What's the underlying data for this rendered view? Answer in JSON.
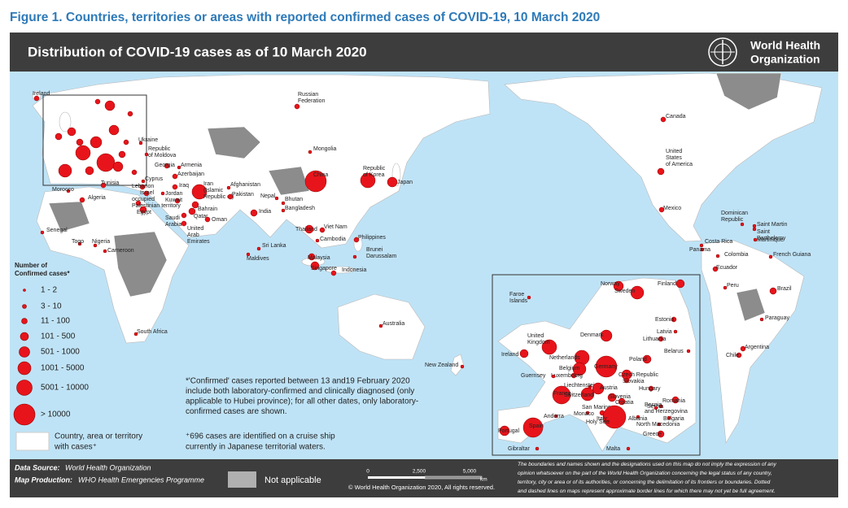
{
  "figure_title": "Figure 1. Countries, territories or areas with reported confirmed cases of COVID-19, 10 March 2020",
  "map_title": "Distribution of COVID-19 cases as of 10 March 2020",
  "organization": [
    "World Health",
    "Organization"
  ],
  "legend": {
    "title": [
      "Number of",
      "Confirmed cases*"
    ],
    "items": [
      "1 - 2",
      "3 - 10",
      "11 - 100",
      "101 - 500",
      "501 - 1000",
      "1001 - 5000",
      "5001 - 10000",
      "> 10000"
    ],
    "area": [
      "Country, area or territory",
      "with cases⁺"
    ]
  },
  "notes": {
    "confirmed": [
      "*'Confirmed' cases reported between 13 and19 February 2020",
      "include both laboratory-confirmed and clinically diagnosed (only",
      "applicable to Hubei province); for all other dates, only laboratory-",
      "confirmed cases are shown."
    ],
    "cruise": [
      "⁺696 cases are identified on a cruise ship",
      "currently in Japanese territorial waters."
    ]
  },
  "countries": [
    [
      "Ireland"
    ],
    [
      "Russian",
      "Federation"
    ],
    [
      "Canada"
    ],
    [
      "United",
      "States",
      "of America"
    ],
    [
      "Mongolia"
    ],
    [
      "China"
    ],
    [
      "Republic",
      "of Korea"
    ],
    [
      "Japan"
    ],
    [
      "Ukraine"
    ],
    [
      "Republic",
      "of Moldova"
    ],
    [
      "Georgia"
    ],
    [
      "Armenia"
    ],
    [
      "Azerbaijan"
    ],
    [
      "Cyprus"
    ],
    [
      "Lebanon"
    ],
    [
      "Israel"
    ],
    [
      "occupied",
      "Palestinian territory"
    ],
    [
      "Jordan"
    ],
    [
      "Iraq"
    ],
    [
      "Kuwait"
    ],
    [
      "Iran",
      "(Islamic",
      "Republic of)"
    ],
    [
      "Afghanistan"
    ],
    [
      "Pakistan"
    ],
    [
      "Nepal"
    ],
    [
      "Bhutan"
    ],
    [
      "Bangladesh"
    ],
    [
      "India"
    ],
    [
      "Egypt"
    ],
    [
      "Saudi",
      "Arabia"
    ],
    [
      "Bahrain"
    ],
    [
      "Qatar"
    ],
    [
      "United",
      "Arab",
      "Emirates"
    ],
    [
      "Oman"
    ],
    [
      "Tunisia"
    ],
    [
      "Morocco"
    ],
    [
      "Algeria"
    ],
    [
      "Senegal"
    ],
    [
      "Togo"
    ],
    [
      "Nigeria"
    ],
    [
      "Cameroon"
    ],
    [
      "South Africa"
    ],
    [
      "Sri Lanka"
    ],
    [
      "Maldives"
    ],
    [
      "Thailand"
    ],
    [
      "Viet Nam"
    ],
    [
      "Cambodia"
    ],
    [
      "Philippines"
    ],
    [
      "Brunei",
      "Darussalam"
    ],
    [
      "Malaysia"
    ],
    [
      "Singapore"
    ],
    [
      "Indonesia"
    ],
    [
      "Australia"
    ],
    [
      "New Zealand"
    ],
    [
      "Mexico"
    ],
    [
      "Dominican",
      "Republic"
    ],
    [
      "Saint Martin"
    ],
    [
      "Saint",
      "Barthelemy"
    ],
    [
      "Martinique"
    ],
    [
      "Costa Rica"
    ],
    [
      "Panama"
    ],
    [
      "Colombia"
    ],
    [
      "French Guiana"
    ],
    [
      "Ecuador"
    ],
    [
      "Peru"
    ],
    [
      "Brazil"
    ],
    [
      "Paraguay"
    ],
    [
      "Chile"
    ],
    [
      "Argentina"
    ]
  ],
  "inset_countries": [
    [
      "Faroe",
      "Islands"
    ],
    [
      "Norway"
    ],
    [
      "Sweden"
    ],
    [
      "Finland"
    ],
    [
      "Estonia"
    ],
    [
      "Latvia"
    ],
    [
      "Lithuania"
    ],
    [
      "Belarus"
    ],
    [
      "United",
      "Kingdom"
    ],
    [
      "Ireland"
    ],
    [
      "Denmark"
    ],
    [
      "Netherlands"
    ],
    [
      "Poland"
    ],
    [
      "Belgium"
    ],
    [
      "Germany"
    ],
    [
      "Luxembourg"
    ],
    [
      "Guernsey"
    ],
    [
      "Czech Republic"
    ],
    [
      "Slovakia"
    ],
    [
      "Liechtenstein"
    ],
    [
      "Austria"
    ],
    [
      "Hungary"
    ],
    [
      "France"
    ],
    [
      "Switzerland"
    ],
    [
      "Slovenia"
    ],
    [
      "Croatia"
    ],
    [
      "Romania"
    ],
    [
      "Serbia"
    ],
    [
      "Bosnia",
      "and Herzegovina"
    ],
    [
      "Bulgaria"
    ],
    [
      "San Marino"
    ],
    [
      "Monaco"
    ],
    [
      "Italy"
    ],
    [
      "Holy See"
    ],
    [
      "Albania"
    ],
    [
      "North Macedonia"
    ],
    [
      "Greece"
    ],
    [
      "Andorra"
    ],
    [
      "Spain"
    ],
    [
      "Portugal"
    ],
    [
      "Gibraltar"
    ],
    [
      "Malta"
    ]
  ],
  "footer": {
    "data_source": [
      "Data Source:",
      "World Health Organization"
    ],
    "map_production": [
      "Map Production:",
      "WHO Health Emergencies Programme"
    ],
    "not_applicable": "Not applicable",
    "scale": [
      "0",
      "2,500",
      "5,000",
      "km"
    ],
    "copyright": "© World Health Organization  2020,  All rights reserved.",
    "disclaimer": [
      "The boundaries and names shown and the designations used on this map do not imply the expression of any",
      "opinion whatsoever on the part of the World Health Organization concerning the legal status of any country,",
      "territory, city or area or of its authorities, or concerning the delimitation of its frontiers or boundaries. Dotted",
      "and dashed lines on maps represent approximate border lines for which there may not yet be full agreement."
    ]
  }
}
